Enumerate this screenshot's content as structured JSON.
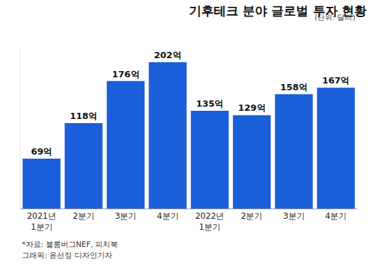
{
  "chart_data": {
    "type": "bar",
    "title": "기후테크 분야 글로벌 투자 현황",
    "subtitle": "(단위: 달러)",
    "categories": [
      "2021년\n1분기",
      "2분기",
      "3분기",
      "4분기",
      "2022년\n1분기",
      "2분기",
      "3분기",
      "4분기"
    ],
    "values": [
      69,
      118,
      176,
      202,
      135,
      129,
      158,
      167
    ],
    "value_labels": [
      "69억",
      "118억",
      "176억",
      "202억",
      "135억",
      "129억",
      "158억",
      "167억"
    ],
    "color": "#1a5fd9",
    "ylim": [
      0,
      220
    ],
    "grid": false,
    "data_labels": true,
    "tick_labels": "x",
    "source": "*자료: 블룸버그NEF, 피치북",
    "credit": "그래픽: 윤선정 디자인기자"
  }
}
